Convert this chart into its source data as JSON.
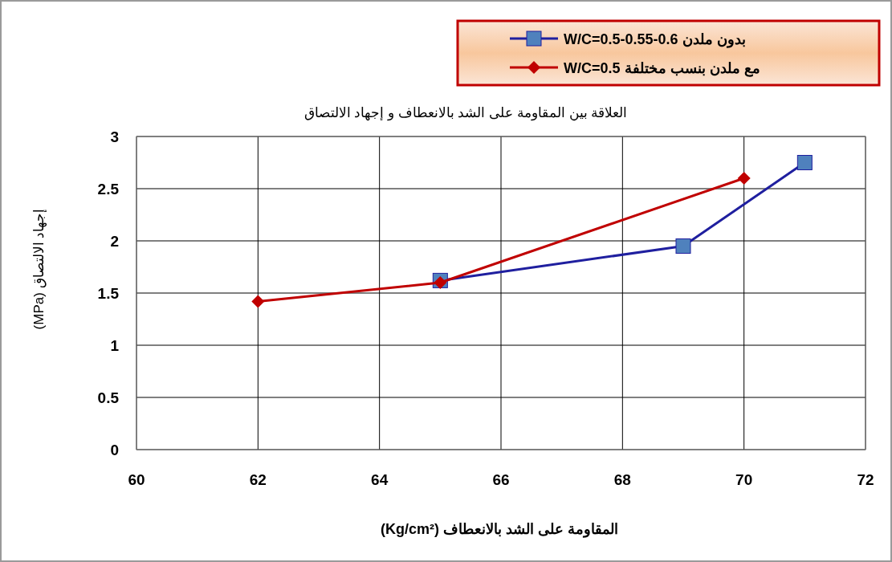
{
  "chart_data": {
    "type": "line",
    "title": "العلاقة بين المقاومة على الشد بالانعطاف و إجهاد الالتصاق",
    "xlabel": "المقاومة على الشد بالانعطاف (Kg/cm²)",
    "ylabel": "إجهاد الالتصاق (MPa)",
    "xlim": [
      60,
      72
    ],
    "xticks": [
      60,
      62,
      64,
      66,
      68,
      70,
      72
    ],
    "ylim": [
      0,
      3
    ],
    "yticks": [
      0,
      0.5,
      1,
      1.5,
      2,
      2.5,
      3
    ],
    "grid": true,
    "legend": "top right",
    "line_style": "solid",
    "series": [
      {
        "name": "بدون ملدن W/C=0.5-0.55-0.6",
        "color": "#1f1f9f",
        "marker": "square",
        "x": [
          65,
          69,
          71
        ],
        "values": [
          1.62,
          1.95,
          2.75
        ]
      },
      {
        "name": "مع ملدن بنسب مختلفة W/C=0.5",
        "color": "#c00000",
        "marker": "diamond",
        "x": [
          62,
          65,
          70
        ],
        "values": [
          1.42,
          1.6,
          2.6
        ]
      }
    ]
  }
}
